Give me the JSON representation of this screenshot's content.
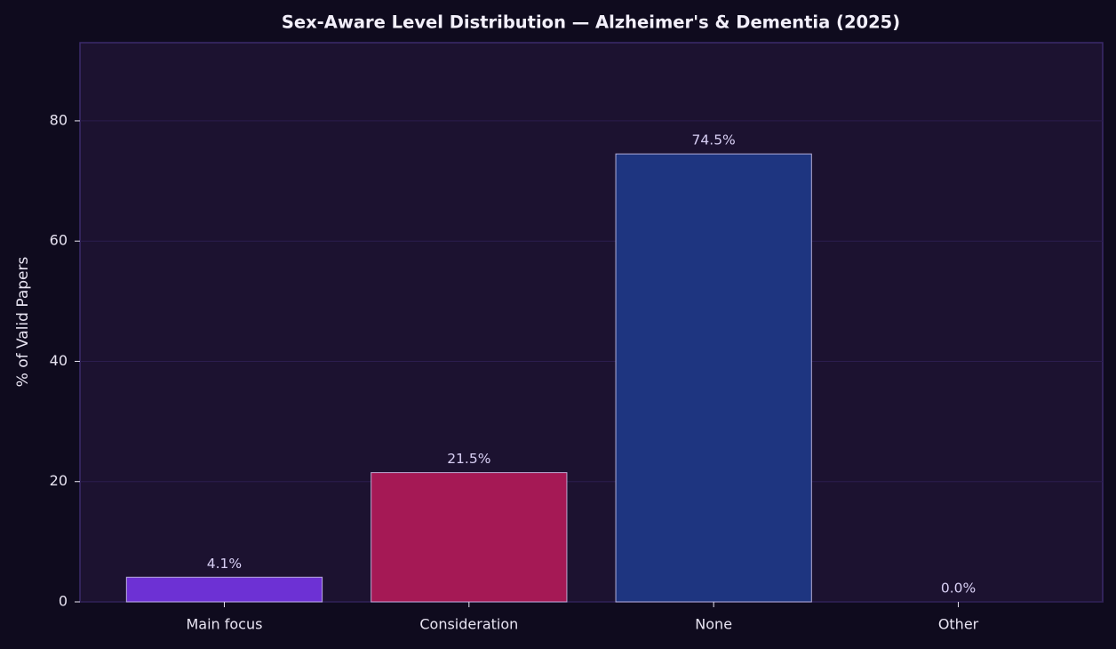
{
  "chart_data": {
    "type": "bar",
    "title": "Sex-Aware Level Distribution — Alzheimer's & Dementia (2025)",
    "y_label": "% of Valid Papers",
    "categories": [
      "Main focus",
      "Consideration",
      "None",
      "Other"
    ],
    "values": [
      4.1,
      21.5,
      74.5,
      0.0
    ],
    "value_labels": [
      "4.1%",
      "21.5%",
      "74.5%",
      "0.0%"
    ],
    "colors": [
      "#6d31d4",
      "#a51955",
      "#1e3580",
      "#5a4a8a"
    ],
    "ylim": [
      0,
      93
    ],
    "yticks": [
      0,
      20,
      40,
      60,
      80
    ],
    "grid": true
  }
}
